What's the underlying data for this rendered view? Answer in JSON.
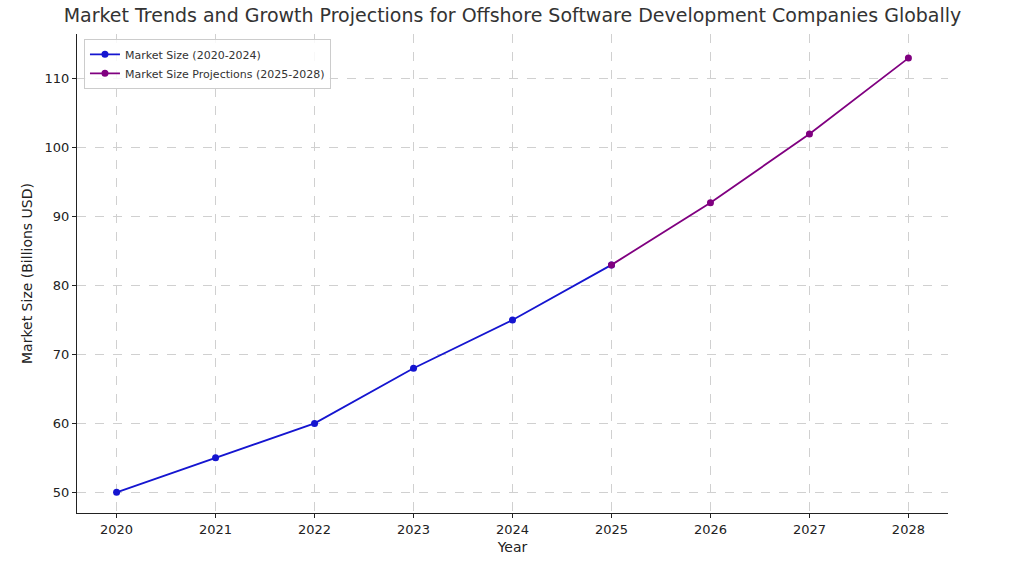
{
  "chart_data": {
    "type": "line",
    "title": "Market Trends and Growth Projections for Offshore Software Development Companies Globally",
    "x_label": "Year",
    "y_label": "Market Size (Billions USD)",
    "series": [
      {
        "name": "Market Size (2020-2024)",
        "color": "#1515d0",
        "marker": "circle",
        "line_style": "solid",
        "x": [
          2020,
          2021,
          2022,
          2023,
          2024,
          2025
        ],
        "values": [
          50,
          55,
          60,
          68,
          75,
          83
        ]
      },
      {
        "name": "Market Size Projections (2025-2028)",
        "color": "#800080",
        "marker": "circle",
        "line_style": "solid",
        "x": [
          2025,
          2026,
          2027,
          2028
        ],
        "values": [
          83,
          92,
          102,
          113
        ]
      }
    ],
    "xlim": [
      2019.6,
      2028.4
    ],
    "xticks": [
      2020,
      2021,
      2022,
      2023,
      2024,
      2025,
      2026,
      2027,
      2028
    ],
    "ylim": [
      47,
      116.5
    ],
    "yticks": [
      50,
      60,
      70,
      80,
      90,
      100,
      110
    ],
    "grid": true,
    "legend": "upper left"
  }
}
